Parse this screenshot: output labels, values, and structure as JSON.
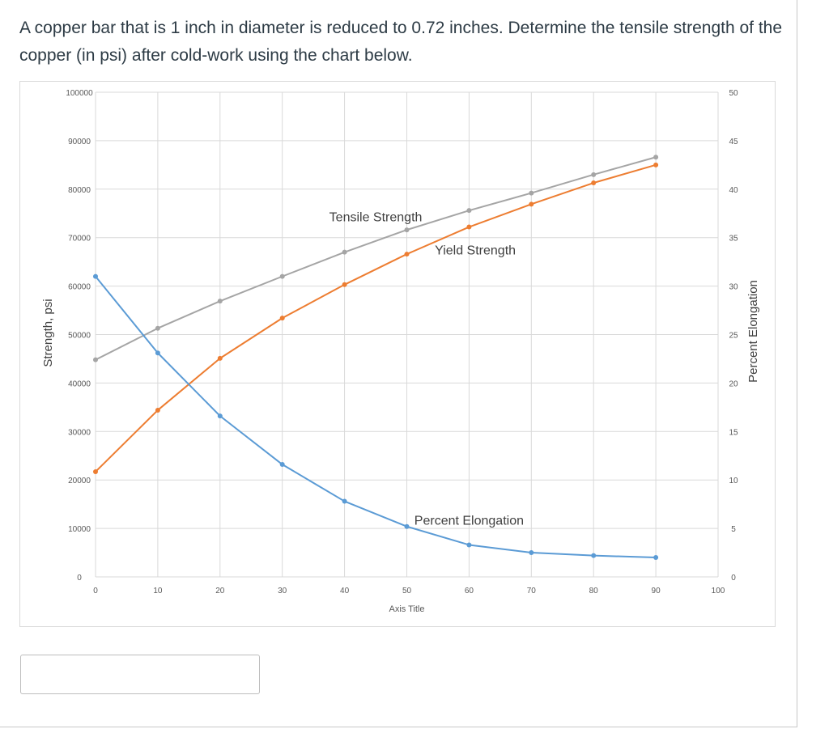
{
  "question": {
    "text": "A copper bar that is 1 inch in diameter is reduced to 0.72 inches.  Determine the tensile strength of the copper (in psi) after cold-work using the chart below."
  },
  "answer": {
    "value": "",
    "placeholder": ""
  },
  "chart_data": {
    "type": "line",
    "x": [
      0,
      10,
      20,
      30,
      40,
      50,
      60,
      70,
      80,
      90
    ],
    "xlim": [
      0,
      100
    ],
    "xticks": [
      0,
      10,
      20,
      30,
      40,
      50,
      60,
      70,
      80,
      90,
      100
    ],
    "xlabel": "Axis Title",
    "ylabel": "Strength, psi",
    "ylim": [
      0,
      100000
    ],
    "yticks": [
      0,
      10000,
      20000,
      30000,
      40000,
      50000,
      60000,
      70000,
      80000,
      90000,
      100000
    ],
    "y2label": "Percent Elongation",
    "y2lim": [
      0,
      50
    ],
    "y2ticks": [
      0,
      5,
      10,
      15,
      20,
      25,
      30,
      35,
      40,
      45,
      50
    ],
    "grid": true,
    "series": [
      {
        "name": "Tensile Strength",
        "axis": "left",
        "color": "#a5a5a5",
        "values": [
          44800,
          51300,
          56900,
          62000,
          67000,
          71600,
          75600,
          79200,
          83000,
          86600
        ]
      },
      {
        "name": "Yield Strength",
        "axis": "left",
        "color": "#ed7d31",
        "values": [
          21700,
          34400,
          45100,
          53400,
          60300,
          66600,
          72200,
          76900,
          81300,
          85000
        ]
      },
      {
        "name": "Percent Elongation",
        "axis": "right",
        "color": "#5b9bd5",
        "values": [
          31,
          23.1,
          16.6,
          11.6,
          7.8,
          5.2,
          3.3,
          2.5,
          2.2,
          2.0
        ]
      }
    ]
  }
}
